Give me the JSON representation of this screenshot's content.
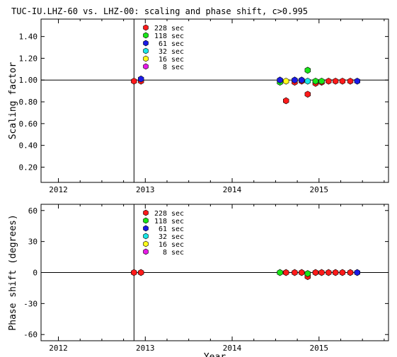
{
  "title": "TUC-IU.LHZ-60 vs. LHZ-00: scaling and phase shift, c>0.995",
  "colors": {
    "228 sec": "#ff1a1a",
    "118 sec": "#19e619",
    "61 sec": "#1a1ae6",
    "32 sec": "#19e6e6",
    "16 sec": "#ffff1a",
    "8 sec": "#e619e6"
  },
  "chart_data": [
    {
      "type": "scatter",
      "ylabel": "Scaling factor",
      "xlabel": "",
      "xlim": [
        2011.8,
        2015.8
      ],
      "ylim": [
        0.06,
        1.56
      ],
      "yticks": [
        "0.20",
        "0.40",
        "0.60",
        "0.80",
        "1.00",
        "1.20",
        "1.40"
      ],
      "xticks": [
        "2012",
        "2013",
        "2014",
        "2015"
      ],
      "reference_line_y": 1.0,
      "vertical_line_x": 2012.87,
      "legend": [
        "228 sec",
        "118 sec",
        "61 sec",
        "32 sec",
        "16 sec",
        "8 sec"
      ],
      "legend_placement": "top-left",
      "series": [
        {
          "name": "228 sec",
          "points": [
            [
              2012.87,
              0.99
            ],
            [
              2012.95,
              0.99
            ],
            [
              2014.62,
              0.81
            ],
            [
              2014.72,
              0.98
            ],
            [
              2014.8,
              0.99
            ],
            [
              2014.87,
              0.87
            ],
            [
              2014.96,
              0.97
            ],
            [
              2015.03,
              0.98
            ],
            [
              2015.11,
              0.99
            ],
            [
              2015.19,
              0.99
            ],
            [
              2015.27,
              0.99
            ],
            [
              2015.36,
              0.99
            ]
          ]
        },
        {
          "name": "118 sec",
          "points": [
            [
              2014.55,
              0.98
            ],
            [
              2014.87,
              1.09
            ],
            [
              2014.96,
              0.99
            ],
            [
              2015.03,
              0.99
            ]
          ]
        },
        {
          "name": "61 sec",
          "points": [
            [
              2012.95,
              1.01
            ],
            [
              2014.55,
              1.0
            ],
            [
              2014.72,
              1.0
            ],
            [
              2014.8,
              1.0
            ],
            [
              2015.44,
              0.99
            ]
          ]
        },
        {
          "name": "32 sec",
          "points": [
            [
              2014.87,
              0.99
            ]
          ]
        },
        {
          "name": "16 sec",
          "points": [
            [
              2014.62,
              0.99
            ]
          ]
        },
        {
          "name": "8 sec",
          "points": []
        }
      ]
    },
    {
      "type": "scatter",
      "ylabel": "Phase shift (degrees)",
      "xlabel": "Year",
      "xlim": [
        2011.8,
        2015.8
      ],
      "ylim": [
        -66,
        66
      ],
      "yticks": [
        "-60",
        "-30",
        "0",
        "30",
        "60"
      ],
      "xticks": [
        "2012",
        "2013",
        "2014",
        "2015"
      ],
      "reference_line_y": 0,
      "vertical_line_x": 2012.87,
      "legend": [
        "228 sec",
        "118 sec",
        "61 sec",
        "32 sec",
        "16 sec",
        "8 sec"
      ],
      "legend_placement": "top-left",
      "series": [
        {
          "name": "228 sec",
          "points": [
            [
              2012.87,
              0
            ],
            [
              2012.95,
              0
            ],
            [
              2014.62,
              0
            ],
            [
              2014.72,
              0
            ],
            [
              2014.8,
              0
            ],
            [
              2014.87,
              -4
            ],
            [
              2014.96,
              0
            ],
            [
              2015.03,
              0
            ],
            [
              2015.11,
              0
            ],
            [
              2015.19,
              0
            ],
            [
              2015.27,
              0
            ],
            [
              2015.36,
              0
            ]
          ]
        },
        {
          "name": "118 sec",
          "points": [
            [
              2014.55,
              0
            ],
            [
              2014.87,
              -1
            ]
          ]
        },
        {
          "name": "61 sec",
          "points": [
            [
              2015.44,
              0
            ]
          ]
        },
        {
          "name": "32 sec",
          "points": []
        },
        {
          "name": "16 sec",
          "points": []
        },
        {
          "name": "8 sec",
          "points": []
        }
      ]
    }
  ]
}
